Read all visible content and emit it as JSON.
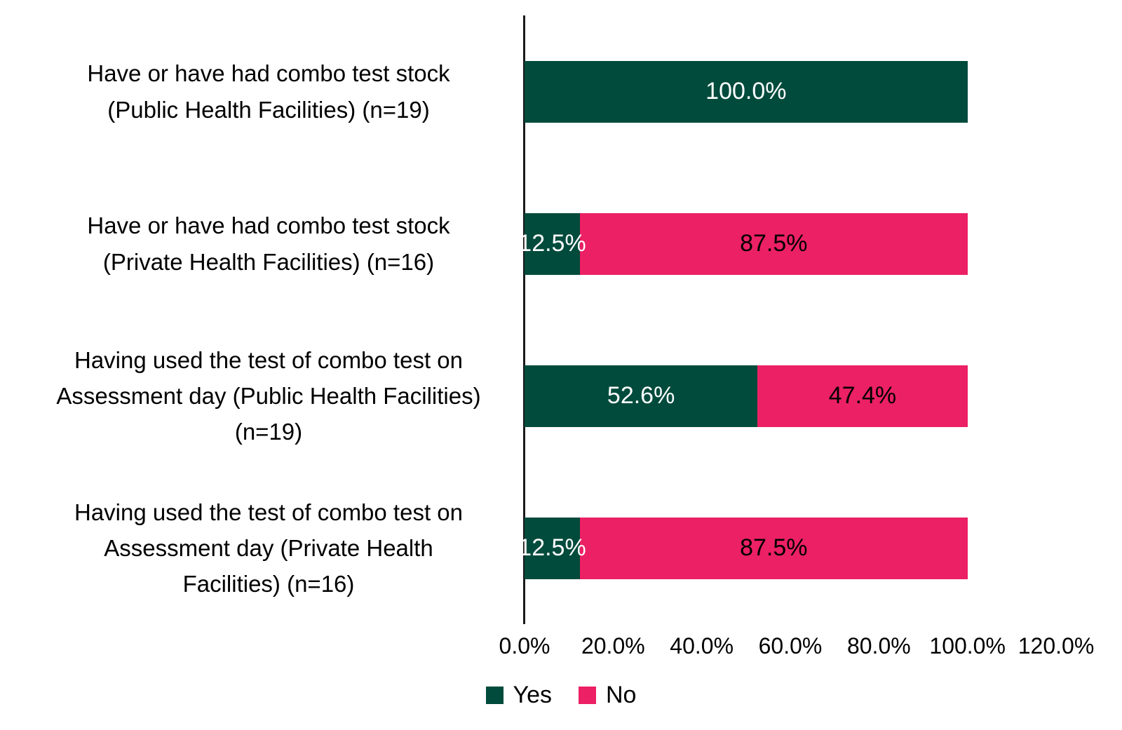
{
  "page": {
    "background": "#ffffff"
  },
  "chart_data": {
    "type": "bar",
    "orientation": "horizontal",
    "stacked": true,
    "title": "",
    "xlabel": "",
    "ylabel": "",
    "grid": false,
    "legend_position": "bottom-center",
    "xlim": [
      0,
      120
    ],
    "x_tick_labels": [
      "0.0%",
      "20.0%",
      "40.0%",
      "60.0%",
      "80.0%",
      "100.0%",
      "120.0%"
    ],
    "categories": [
      "Have or have had combo test stock (Public Health Facilities) (n=19)",
      "Have or have had combo test stock (Private Health Facilities) (n=16)",
      "Having used the test of combo test on Assessment day (Public Health Facilities) (n=19)",
      "Having used the test of combo test on Assessment day (Private Health Facilities) (n=16)"
    ],
    "category_lines": [
      [
        "Have or have had combo test stock",
        "(Public Health Facilities) (n=19)"
      ],
      [
        "Have or have had combo test stock",
        "(Private Health Facilities) (n=16)"
      ],
      [
        "Having used the test of  combo test on",
        "Assessment day (Public Health Facilities)",
        "(n=19)"
      ],
      [
        "Having used the test of  combo test on",
        "Assessment day (Private Health",
        "Facilities) (n=16)"
      ]
    ],
    "series": [
      {
        "name": "Yes",
        "color": "#014B3C",
        "label_color": "#ffffff",
        "values": [
          100.0,
          12.5,
          52.6,
          12.5
        ],
        "labels": [
          "100.0%",
          "12.5%",
          "52.6%",
          "12.5%"
        ]
      },
      {
        "name": "No",
        "color": "#EC2064",
        "label_color": "#000000",
        "values": [
          0,
          87.5,
          47.4,
          87.5
        ],
        "labels": [
          null,
          "87.5%",
          "47.4%",
          "87.5%"
        ]
      }
    ]
  }
}
